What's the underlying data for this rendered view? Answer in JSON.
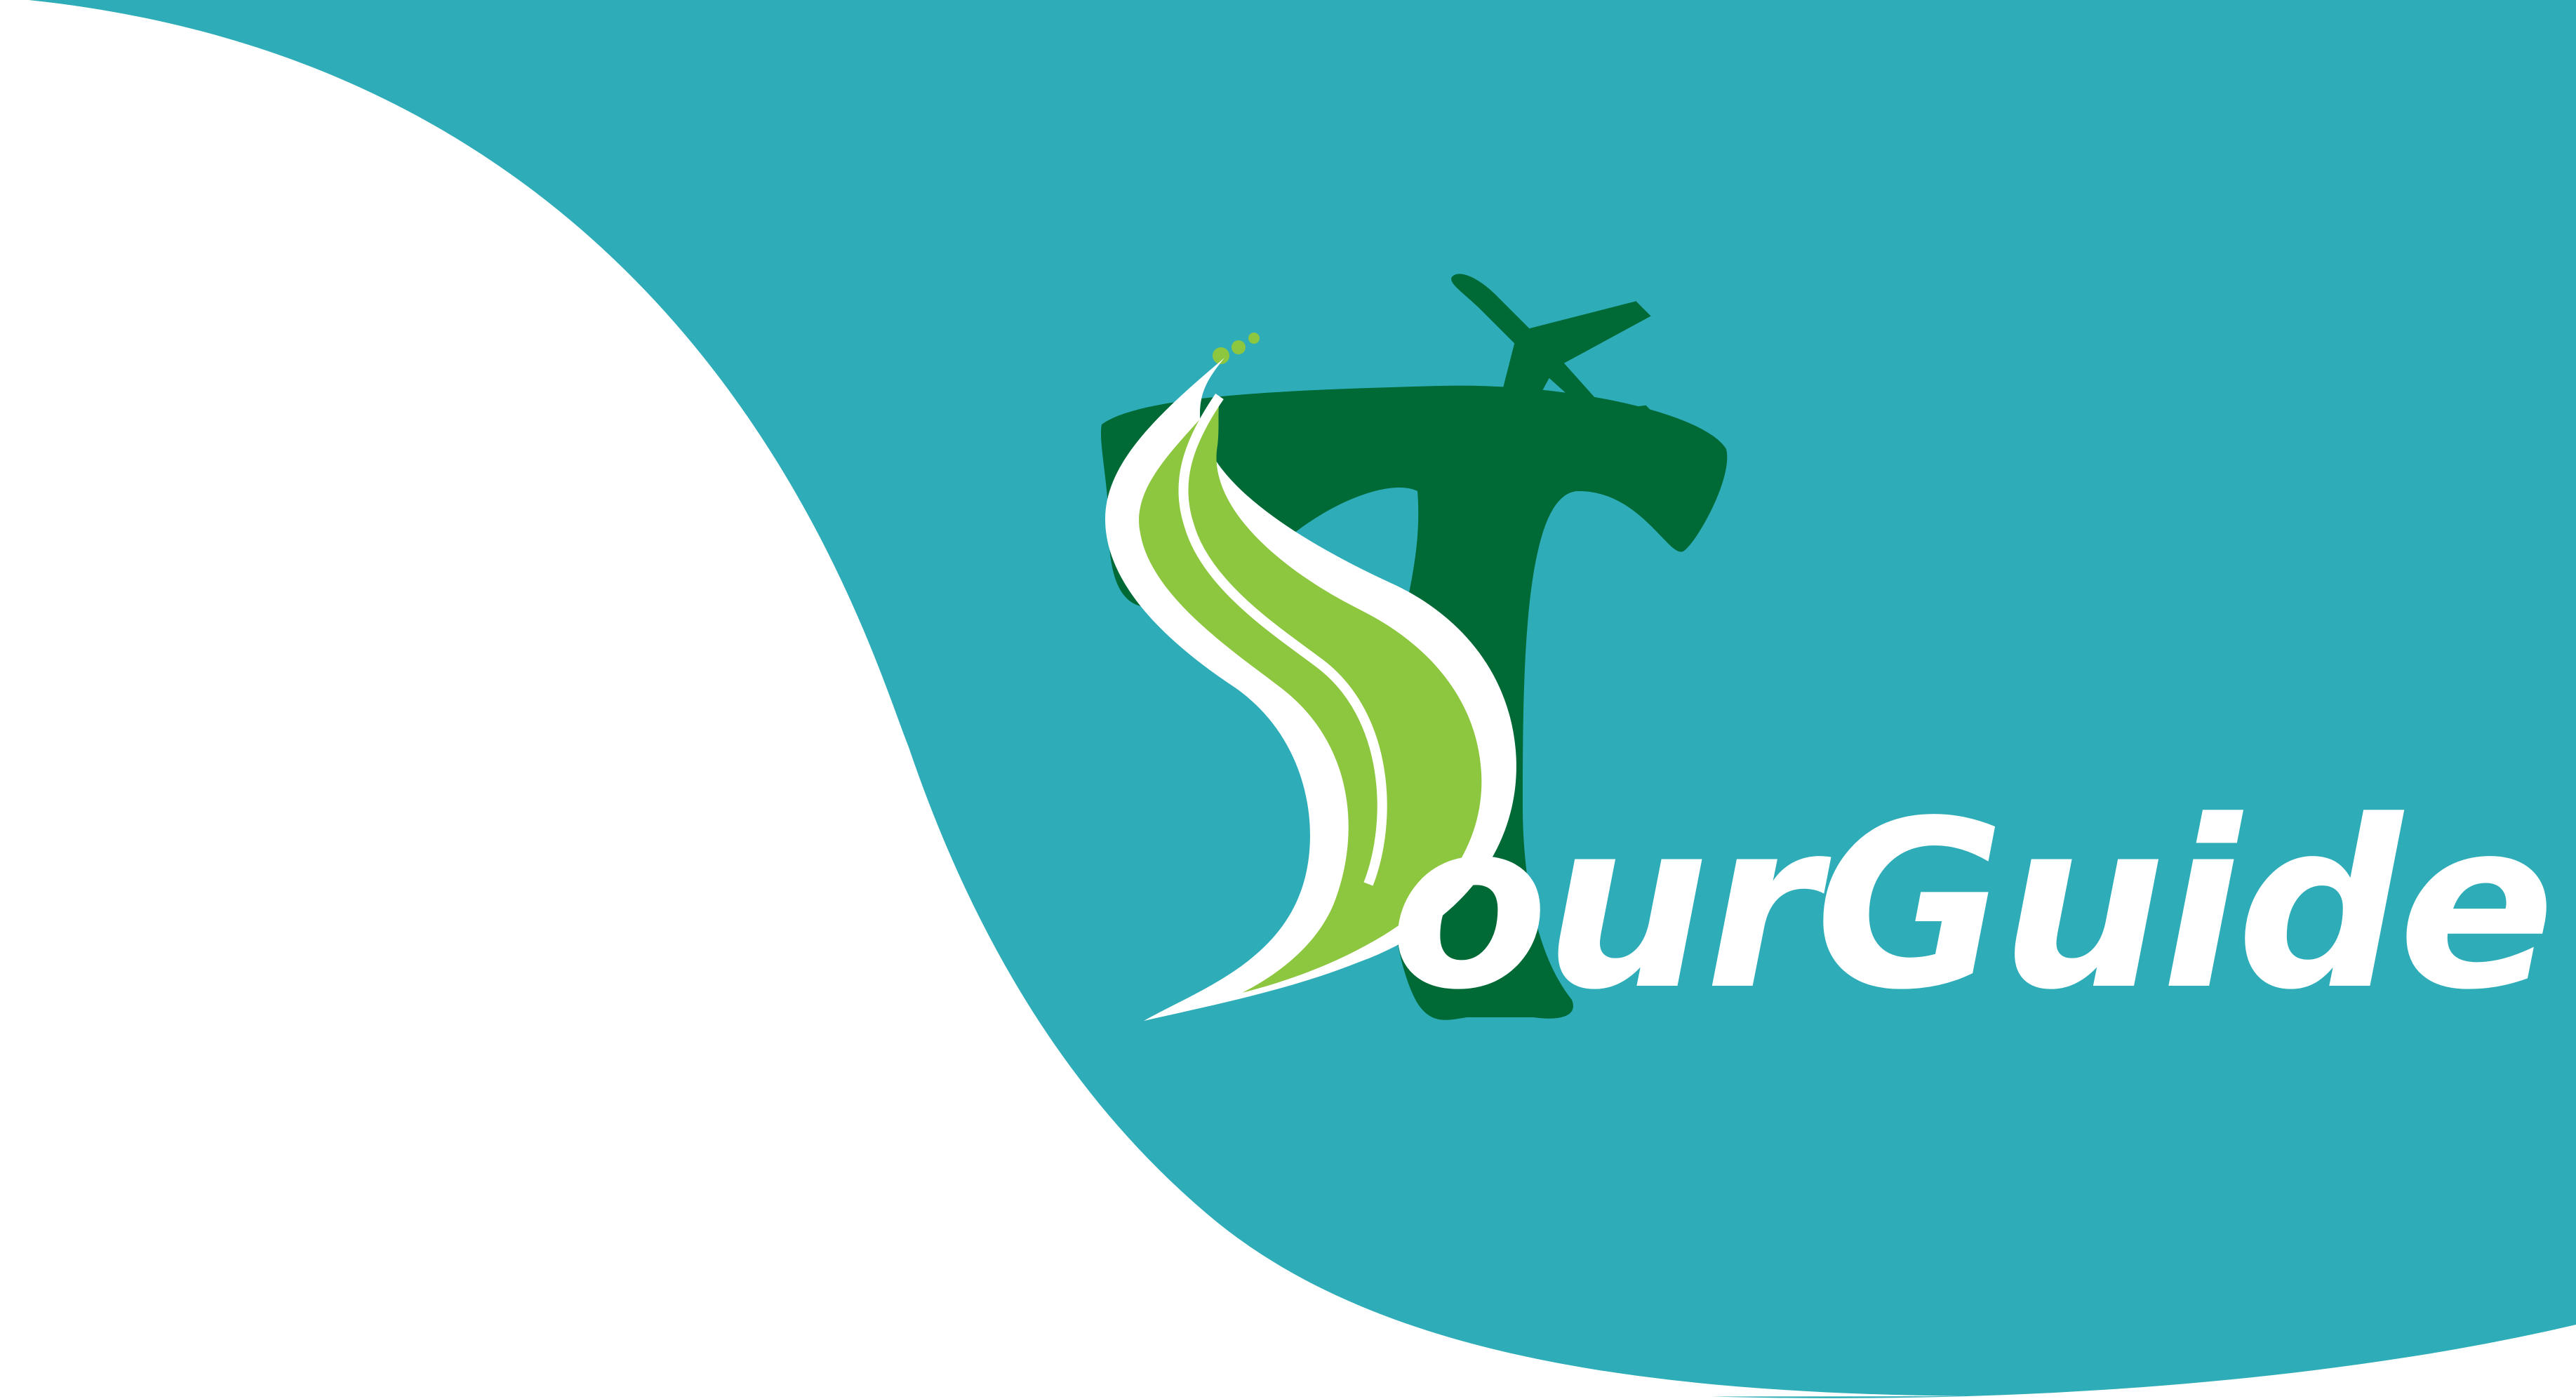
{
  "brand": {
    "wordmark": "TourGuide",
    "wordmark_visible_part": "ourGuide"
  },
  "colors": {
    "background_white": "#ffffff",
    "teal": "#2eadb9",
    "dark_green": "#006a37",
    "light_green": "#8dc63f",
    "white": "#ffffff"
  },
  "icons": {
    "plane": "airplane-icon",
    "road": "winding-road-s",
    "letter": "letter-t"
  }
}
